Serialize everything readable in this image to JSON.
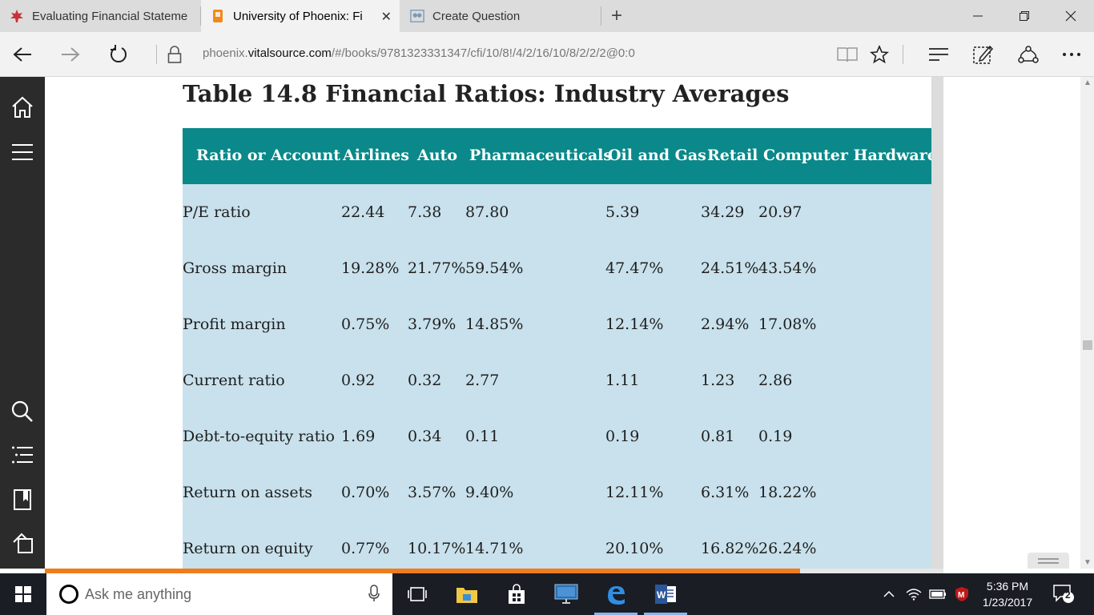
{
  "browser": {
    "tabs": [
      {
        "label": "Evaluating Financial Stateme",
        "icon": "maple-leaf-icon"
      },
      {
        "label": "University of Phoenix: Fi",
        "icon": "phoenix-icon",
        "active": true
      },
      {
        "label": "Create Question",
        "icon": "question-icon"
      }
    ],
    "address": {
      "prefix": "phoenix.",
      "host": "vitalsource.com",
      "path": "/#/books/9781323331347/cfi/10/8!/4/2/16/10/8/2/2/2@0:0"
    }
  },
  "book": {
    "title": "Table 14.8 Financial Ratios: Industry Averages",
    "headers": [
      "Ratio or Account",
      "Airlines",
      "Auto",
      "Pharmaceuticals",
      "Oil and Gas",
      "Retail",
      "Computer Hardware"
    ],
    "rows": [
      [
        "P/E ratio",
        "22.44",
        "7.38",
        "87.80",
        "5.39",
        "34.29",
        "20.97"
      ],
      [
        "Gross margin",
        "19.28%",
        "21.77%",
        "59.54%",
        "47.47%",
        "24.51%",
        "43.54%"
      ],
      [
        "Profit margin",
        "0.75%",
        "3.79%",
        "14.85%",
        "12.14%",
        "2.94%",
        "17.08%"
      ],
      [
        "Current ratio",
        "0.92",
        "0.32",
        "2.77",
        "1.11",
        "1.23",
        "2.86"
      ],
      [
        "Debt-to-equity ratio",
        "1.69",
        "0.34",
        "0.11",
        "0.19",
        "0.81",
        "0.19"
      ],
      [
        "Return on assets",
        "0.70%",
        "3.57%",
        "9.40%",
        "12.11%",
        "6.31%",
        "18.22%"
      ],
      [
        "Return on equity",
        "0.77%",
        "10.17%",
        "14.71%",
        "20.10%",
        "16.82%",
        "26.24%"
      ]
    ],
    "reading_progress": 0.72
  },
  "taskbar": {
    "search_placeholder": "Ask me anything",
    "time": "5:36 PM",
    "date": "1/23/2017",
    "notifications": "2"
  },
  "colors": {
    "header_bg": "#0b8889",
    "body_bg": "#c8e1ec",
    "progress": "#f07c1c"
  }
}
